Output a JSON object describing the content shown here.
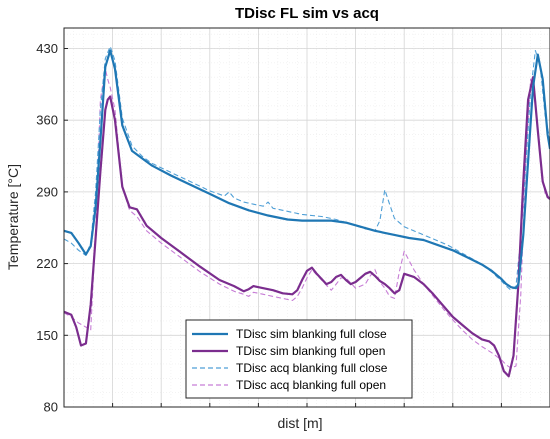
{
  "chart_data": {
    "type": "line",
    "title": "TDisc FL sim vs acq",
    "xlabel": "dist [m]",
    "ylabel": "Temperature [°C]",
    "xlim": [
      0,
      100
    ],
    "ylim": [
      80,
      450
    ],
    "y_ticks": [
      80,
      150,
      220,
      290,
      360,
      430
    ],
    "x_tick_labels_shown": false,
    "grid": "on",
    "minor_grid": "on",
    "legend_position": "bottom-center",
    "series": [
      {
        "name": "TDisc sim blanking full close",
        "color": "#1f77b4",
        "style": "solid",
        "width": 2.2,
        "x": [
          0,
          1.5,
          3,
          4.5,
          5.5,
          6.5,
          7.5,
          8.5,
          9.5,
          10.5,
          12,
          14,
          16,
          18,
          22,
          26,
          30,
          34,
          38,
          42,
          46,
          49,
          50,
          51,
          52,
          55,
          58,
          61,
          64,
          66,
          68,
          71,
          74,
          77,
          80,
          83,
          86,
          88,
          90,
          91,
          92,
          93,
          93.5,
          94.5,
          95.5,
          96.5,
          97.5,
          98.5,
          99.5,
          100
        ],
        "y": [
          252,
          250,
          240,
          229,
          237,
          275,
          340,
          412,
          428,
          410,
          355,
          330,
          323,
          316,
          306,
          297,
          288,
          279,
          272,
          267,
          263,
          262,
          262,
          262,
          262,
          262,
          260,
          256,
          252,
          250,
          248,
          245,
          243,
          238,
          233,
          226,
          219,
          213,
          205,
          200,
          197,
          196,
          200,
          248,
          320,
          392,
          424,
          400,
          346,
          332
        ]
      },
      {
        "name": "TDisc sim blanking full open",
        "color": "#7b2d8e",
        "style": "solid",
        "width": 2.2,
        "x": [
          0,
          1.5,
          2.5,
          3.5,
          4.5,
          5.5,
          6.5,
          7.5,
          8.5,
          9,
          9.5,
          10.5,
          12,
          13.5,
          15,
          17,
          20,
          24,
          28,
          32,
          35,
          37,
          38,
          39,
          41,
          43,
          45,
          47,
          48,
          49,
          50,
          51,
          52,
          53,
          54,
          55,
          56,
          57,
          58,
          59,
          60,
          61,
          62,
          63,
          64,
          65,
          66,
          67,
          68,
          69,
          70,
          72,
          74,
          76,
          78,
          80,
          82,
          84,
          86,
          87.5,
          88.5,
          89.5,
          90.5,
          91.5,
          92.5,
          93.5,
          94.5,
          95.5,
          96.5,
          97.5,
          98.5,
          99.5,
          100
        ],
        "y": [
          173,
          170,
          158,
          140,
          142,
          180,
          245,
          310,
          370,
          380,
          383,
          360,
          295,
          275,
          273,
          257,
          245,
          231,
          217,
          204,
          198,
          193,
          195,
          198,
          196,
          194,
          191,
          190,
          194,
          204,
          213,
          216,
          210,
          205,
          200,
          202,
          207,
          209,
          204,
          200,
          202,
          206,
          210,
          212,
          208,
          203,
          200,
          196,
          191,
          194,
          210,
          207,
          200,
          190,
          179,
          168,
          160,
          152,
          146,
          144,
          140,
          130,
          115,
          110,
          130,
          200,
          300,
          380,
          402,
          350,
          300,
          285,
          283
        ]
      },
      {
        "name": "TDisc acq blanking full close",
        "color": "#4f9fd6",
        "style": "dashed",
        "width": 1.1,
        "x": [
          0,
          1.5,
          3,
          4.5,
          5.5,
          6.5,
          7.5,
          8.5,
          9.5,
          10.5,
          12,
          14,
          16,
          18,
          22,
          26,
          30,
          33,
          34,
          35,
          37,
          39,
          41,
          42,
          43,
          45,
          47,
          49,
          51,
          53,
          56,
          58,
          60,
          62,
          64,
          65,
          66,
          67,
          68,
          70,
          73,
          76,
          79,
          82,
          85,
          88,
          90,
          91,
          92,
          93,
          94,
          95,
          96,
          97,
          98,
          99,
          100
        ],
        "y": [
          244,
          240,
          233,
          228,
          240,
          290,
          370,
          420,
          432,
          418,
          362,
          335,
          325,
          318,
          309,
          300,
          291,
          286,
          290,
          284,
          280,
          278,
          276,
          280,
          274,
          272,
          270,
          268,
          267,
          266,
          263,
          260,
          257,
          254,
          252,
          262,
          292,
          278,
          264,
          256,
          250,
          244,
          238,
          230,
          222,
          212,
          203,
          198,
          194,
          198,
          245,
          315,
          388,
          428,
          412,
          365,
          340
        ]
      },
      {
        "name": "TDisc acq blanking full open",
        "color": "#c77dd6",
        "style": "dashed",
        "width": 1.1,
        "x": [
          0,
          1.5,
          3,
          4.5,
          5.5,
          6.5,
          7.5,
          8.5,
          9,
          9.5,
          10.5,
          12,
          13.5,
          15,
          17,
          20,
          24,
          28,
          32,
          35,
          37,
          38,
          39,
          41,
          43,
          45,
          47,
          48,
          49,
          50,
          51,
          53,
          55,
          56,
          57,
          58,
          60,
          62,
          63,
          64,
          65,
          66,
          67,
          68,
          69,
          70,
          72,
          74,
          76,
          78,
          80,
          82,
          84,
          86,
          88,
          90,
          91,
          92,
          93,
          94,
          95,
          96,
          97,
          98,
          99,
          100
        ],
        "y": [
          172,
          168,
          162,
          158,
          155,
          250,
          380,
          410,
          400,
          392,
          370,
          295,
          272,
          266,
          252,
          240,
          226,
          212,
          200,
          193,
          190,
          188,
          192,
          190,
          188,
          186,
          184,
          188,
          196,
          206,
          214,
          204,
          194,
          200,
          206,
          206,
          196,
          200,
          208,
          214,
          202,
          196,
          188,
          186,
          212,
          232,
          214,
          200,
          188,
          176,
          165,
          155,
          146,
          139,
          133,
          126,
          121,
          118,
          120,
          190,
          320,
          400,
          380,
          320,
          288,
          284
        ]
      }
    ]
  }
}
